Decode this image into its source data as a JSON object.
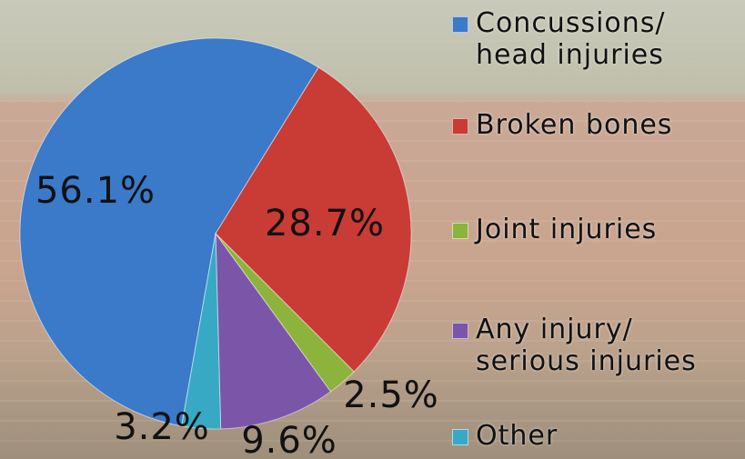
{
  "chart_data": {
    "type": "pie",
    "categories": [
      "Concussions/ head injuries",
      "Broken bones",
      "Joint injuries",
      "Any injury/ serious injuries",
      "Other"
    ],
    "values": [
      56.1,
      28.7,
      2.5,
      9.6,
      3.2
    ],
    "value_labels": [
      "56.1%",
      "28.7%",
      "2.5%",
      "9.6%",
      "3.2%"
    ],
    "colors": [
      "#3b79c9",
      "#c93b35",
      "#8cb33b",
      "#7b56a8",
      "#37a9c5"
    ],
    "legend": "right"
  }
}
